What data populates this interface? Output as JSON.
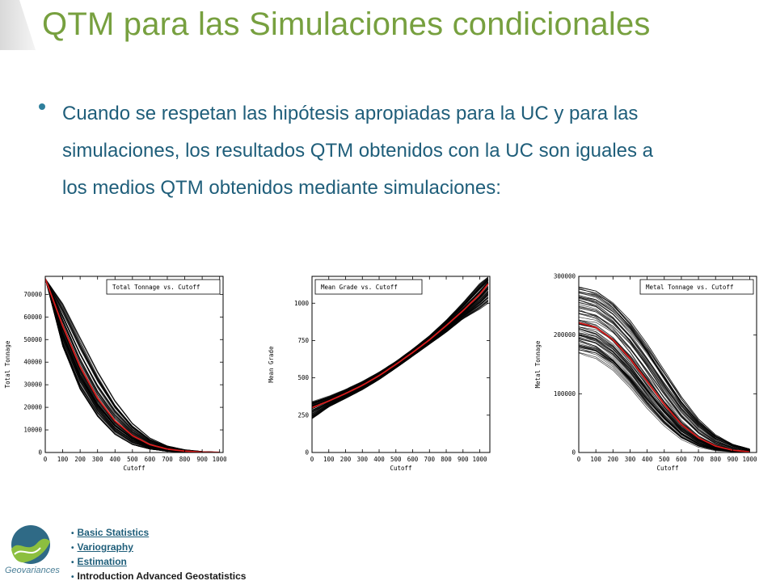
{
  "slide": {
    "title": "QTM para las Simulaciones condicionales",
    "bullet": "Cuando se respetan las hipótesis apropiadas para la UC y para las simulaciones, los resultados QTM obtenidos con la UC son iguales a los medios QTM obtenidos mediante simulaciones:"
  },
  "footer": {
    "logo_text": "Geovariances",
    "nav": [
      {
        "label": "Basic Statistics",
        "link": true
      },
      {
        "label": "Variography",
        "link": true
      },
      {
        "label": "Estimation",
        "link": true
      },
      {
        "label": "Introduction Advanced Geostatistics",
        "link": false
      }
    ]
  },
  "colors": {
    "title": "#77a03f",
    "text": "#1f5e7a",
    "mean_curve": "#d81c1c",
    "simulations": "#000000"
  },
  "chart_data": [
    {
      "type": "line",
      "title": "Total Tonnage vs. Cutoff",
      "xlabel": "Cutoff",
      "ylabel": "Total Tonnage",
      "xlim": [
        0,
        1020
      ],
      "ylim": [
        0,
        78000
      ],
      "xticks": [
        0,
        100,
        200,
        300,
        400,
        500,
        600,
        700,
        800,
        900,
        1000
      ],
      "yticks": [
        0,
        10000,
        20000,
        30000,
        40000,
        50000,
        60000,
        70000
      ],
      "legend": "top-right",
      "series": [
        {
          "role": "mean",
          "x": [
            0,
            100,
            200,
            300,
            400,
            500,
            600,
            700,
            800,
            900,
            1000
          ],
          "values": [
            77000,
            56000,
            38000,
            24000,
            14000,
            7500,
            3500,
            1500,
            600,
            200,
            50
          ]
        },
        {
          "role": "envelope-upper",
          "x": [
            0,
            100,
            200,
            300,
            400,
            500,
            600,
            700,
            800,
            900,
            1000
          ],
          "values": [
            77000,
            66000,
            51000,
            36000,
            23000,
            13000,
            6500,
            3000,
            1300,
            500,
            150
          ]
        },
        {
          "role": "envelope-lower",
          "x": [
            0,
            100,
            200,
            300,
            400,
            500,
            600,
            700,
            800,
            900,
            1000
          ],
          "values": [
            77000,
            47000,
            28000,
            16000,
            8000,
            3500,
            1500,
            500,
            150,
            50,
            0
          ]
        }
      ]
    },
    {
      "type": "line",
      "title": "Mean Grade vs. Cutoff",
      "xlabel": "Cutoff",
      "ylabel": "Mean Grade",
      "xlim": [
        0,
        1060
      ],
      "ylim": [
        0,
        1180
      ],
      "xticks": [
        0,
        100,
        200,
        300,
        400,
        500,
        600,
        700,
        800,
        900,
        1000
      ],
      "yticks": [
        0,
        250,
        500,
        750,
        1000
      ],
      "legend": "top-left",
      "series": [
        {
          "role": "mean",
          "x": [
            0,
            100,
            200,
            300,
            400,
            500,
            600,
            700,
            800,
            900,
            1000,
            1050
          ],
          "values": [
            300,
            345,
            395,
            450,
            515,
            590,
            670,
            755,
            850,
            950,
            1060,
            1130
          ]
        },
        {
          "role": "envelope-upper",
          "x": [
            0,
            100,
            200,
            300,
            400,
            500,
            600,
            700,
            800,
            900,
            1000,
            1050
          ],
          "values": [
            345,
            380,
            425,
            478,
            540,
            612,
            695,
            785,
            890,
            1010,
            1140,
            1180
          ]
        },
        {
          "role": "envelope-lower",
          "x": [
            0,
            100,
            200,
            300,
            400,
            500,
            600,
            700,
            800,
            900,
            1000,
            1050
          ],
          "values": [
            225,
            305,
            362,
            420,
            488,
            565,
            645,
            725,
            805,
            895,
            960,
            1000
          ]
        }
      ]
    },
    {
      "type": "line",
      "title": "Metal Tonnage vs. Cutoff",
      "xlabel": "Cutoff",
      "ylabel": "Metal Tonnage",
      "xlim": [
        0,
        1040
      ],
      "ylim": [
        0,
        300000
      ],
      "xticks": [
        0,
        100,
        200,
        300,
        400,
        500,
        600,
        700,
        800,
        900,
        1000
      ],
      "yticks": [
        0,
        100000,
        200000,
        300000
      ],
      "legend": "top-right",
      "series": [
        {
          "role": "mean",
          "x": [
            0,
            100,
            200,
            300,
            400,
            500,
            600,
            700,
            800,
            900,
            1000
          ],
          "values": [
            221000,
            213000,
            192000,
            160000,
            121000,
            82000,
            48000,
            25000,
            11000,
            4000,
            1000
          ]
        },
        {
          "role": "envelope-upper",
          "x": [
            0,
            100,
            200,
            300,
            400,
            500,
            600,
            700,
            800,
            900,
            1000
          ],
          "values": [
            282000,
            275000,
            255000,
            225000,
            185000,
            140000,
            95000,
            57000,
            30000,
            14000,
            6000
          ]
        },
        {
          "role": "envelope-lower",
          "x": [
            0,
            100,
            200,
            300,
            400,
            500,
            600,
            700,
            800,
            900,
            1000
          ],
          "values": [
            168000,
            160000,
            140000,
            110000,
            75000,
            45000,
            22000,
            9000,
            3000,
            1000,
            200
          ]
        }
      ]
    }
  ]
}
